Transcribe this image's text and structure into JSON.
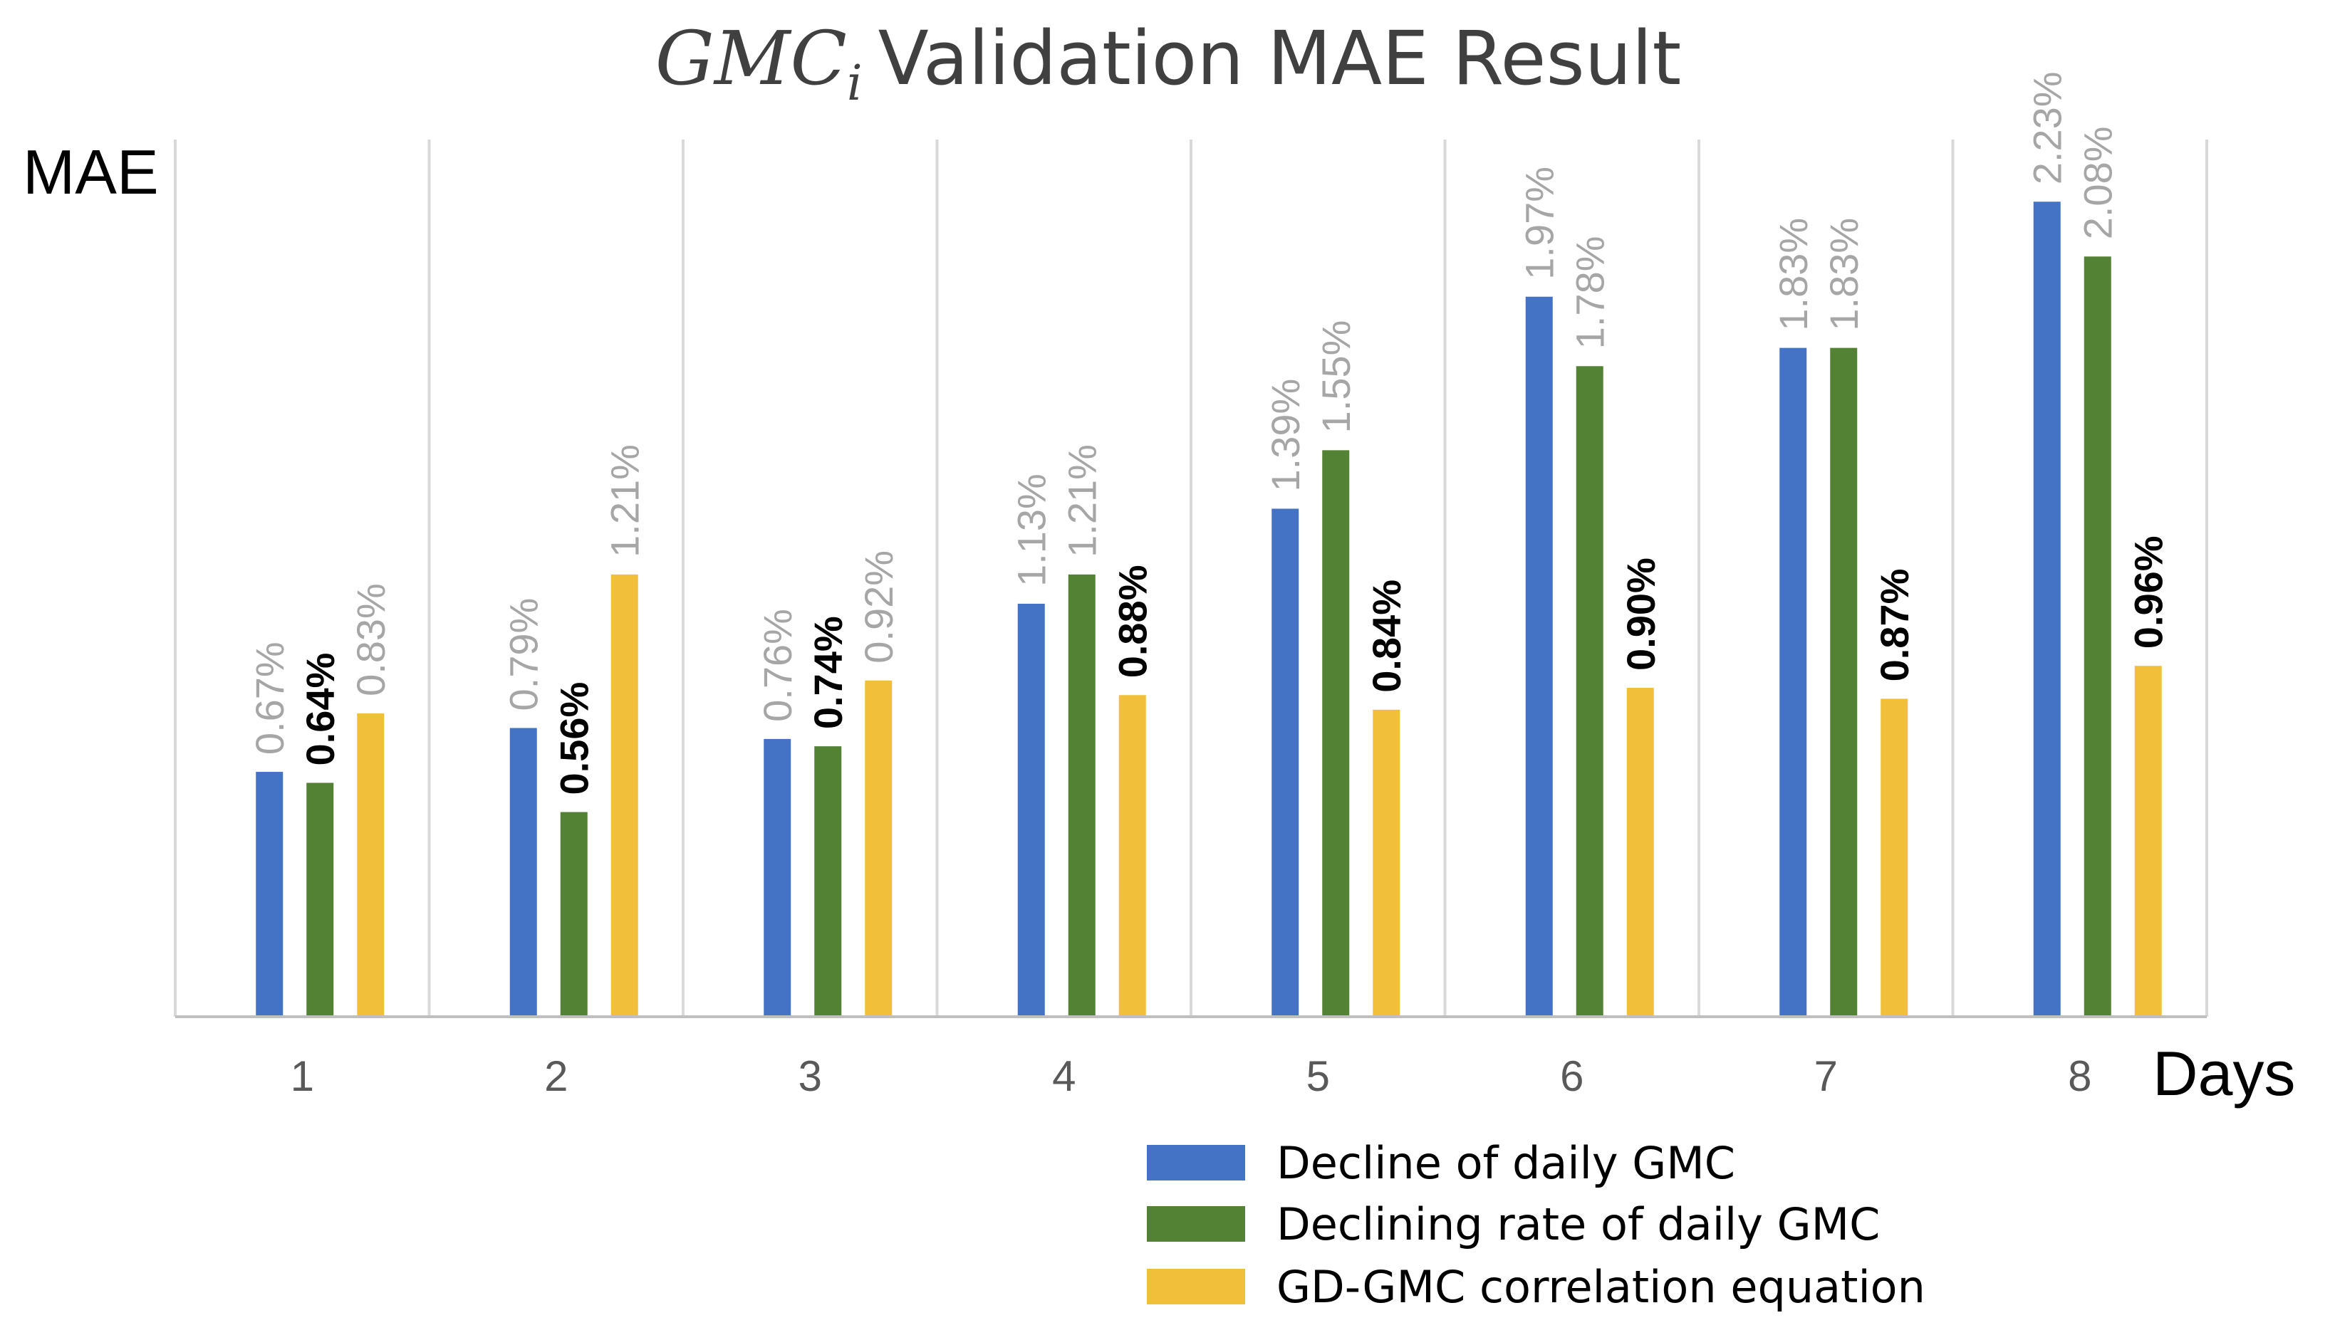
{
  "chart_data": {
    "type": "bar",
    "title_math": "GMC",
    "title_math_sub": "i",
    "title_text": "Validation MAE Result",
    "ylabel": "MAE",
    "xlabel": "Days",
    "categories": [
      "1",
      "2",
      "3",
      "4",
      "5",
      "6",
      "7",
      "8"
    ],
    "ylim": [
      0,
      2.4
    ],
    "grid": "vertical separators between categories",
    "legend_position": "bottom-right",
    "series": [
      {
        "name": "Decline of daily GMC",
        "color": "#4472C4",
        "values": [
          0.67,
          0.79,
          0.76,
          1.13,
          1.39,
          1.97,
          1.83,
          2.23
        ],
        "labels": [
          "0.67%",
          "0.79%",
          "0.76%",
          "1.13%",
          "1.39%",
          "1.97%",
          "1.83%",
          "2.23%"
        ],
        "label_color": "#A6A6A6",
        "label_bold": false
      },
      {
        "name": "Declining rate of daily GMC",
        "color": "#548235",
        "values": [
          0.64,
          0.56,
          0.74,
          1.21,
          1.55,
          1.78,
          1.83,
          2.08
        ],
        "labels": [
          "0.64%",
          "0.56%",
          "0.74%",
          "1.21%",
          "1.55%",
          "1.78%",
          "1.83%",
          "2.08%"
        ],
        "label_colors": [
          "#000000",
          "#000000",
          "#000000",
          "#A6A6A6",
          "#A6A6A6",
          "#A6A6A6",
          "#A6A6A6",
          "#A6A6A6"
        ],
        "label_bolds": [
          true,
          true,
          true,
          false,
          false,
          false,
          false,
          false
        ]
      },
      {
        "name": "GD-GMC correlation equation",
        "color": "#F2BF3A",
        "values": [
          0.83,
          1.21,
          0.92,
          0.88,
          0.84,
          0.9,
          0.87,
          0.96
        ],
        "labels": [
          "0.83%",
          "1.21%",
          "0.92%",
          "0.88%",
          "0.84%",
          "0.90%",
          "0.87%",
          "0.96%"
        ],
        "label_colors": [
          "#A6A6A6",
          "#A6A6A6",
          "#A6A6A6",
          "#000000",
          "#000000",
          "#000000",
          "#000000",
          "#000000"
        ],
        "label_bolds": [
          false,
          false,
          false,
          true,
          true,
          true,
          true,
          true
        ]
      }
    ]
  }
}
